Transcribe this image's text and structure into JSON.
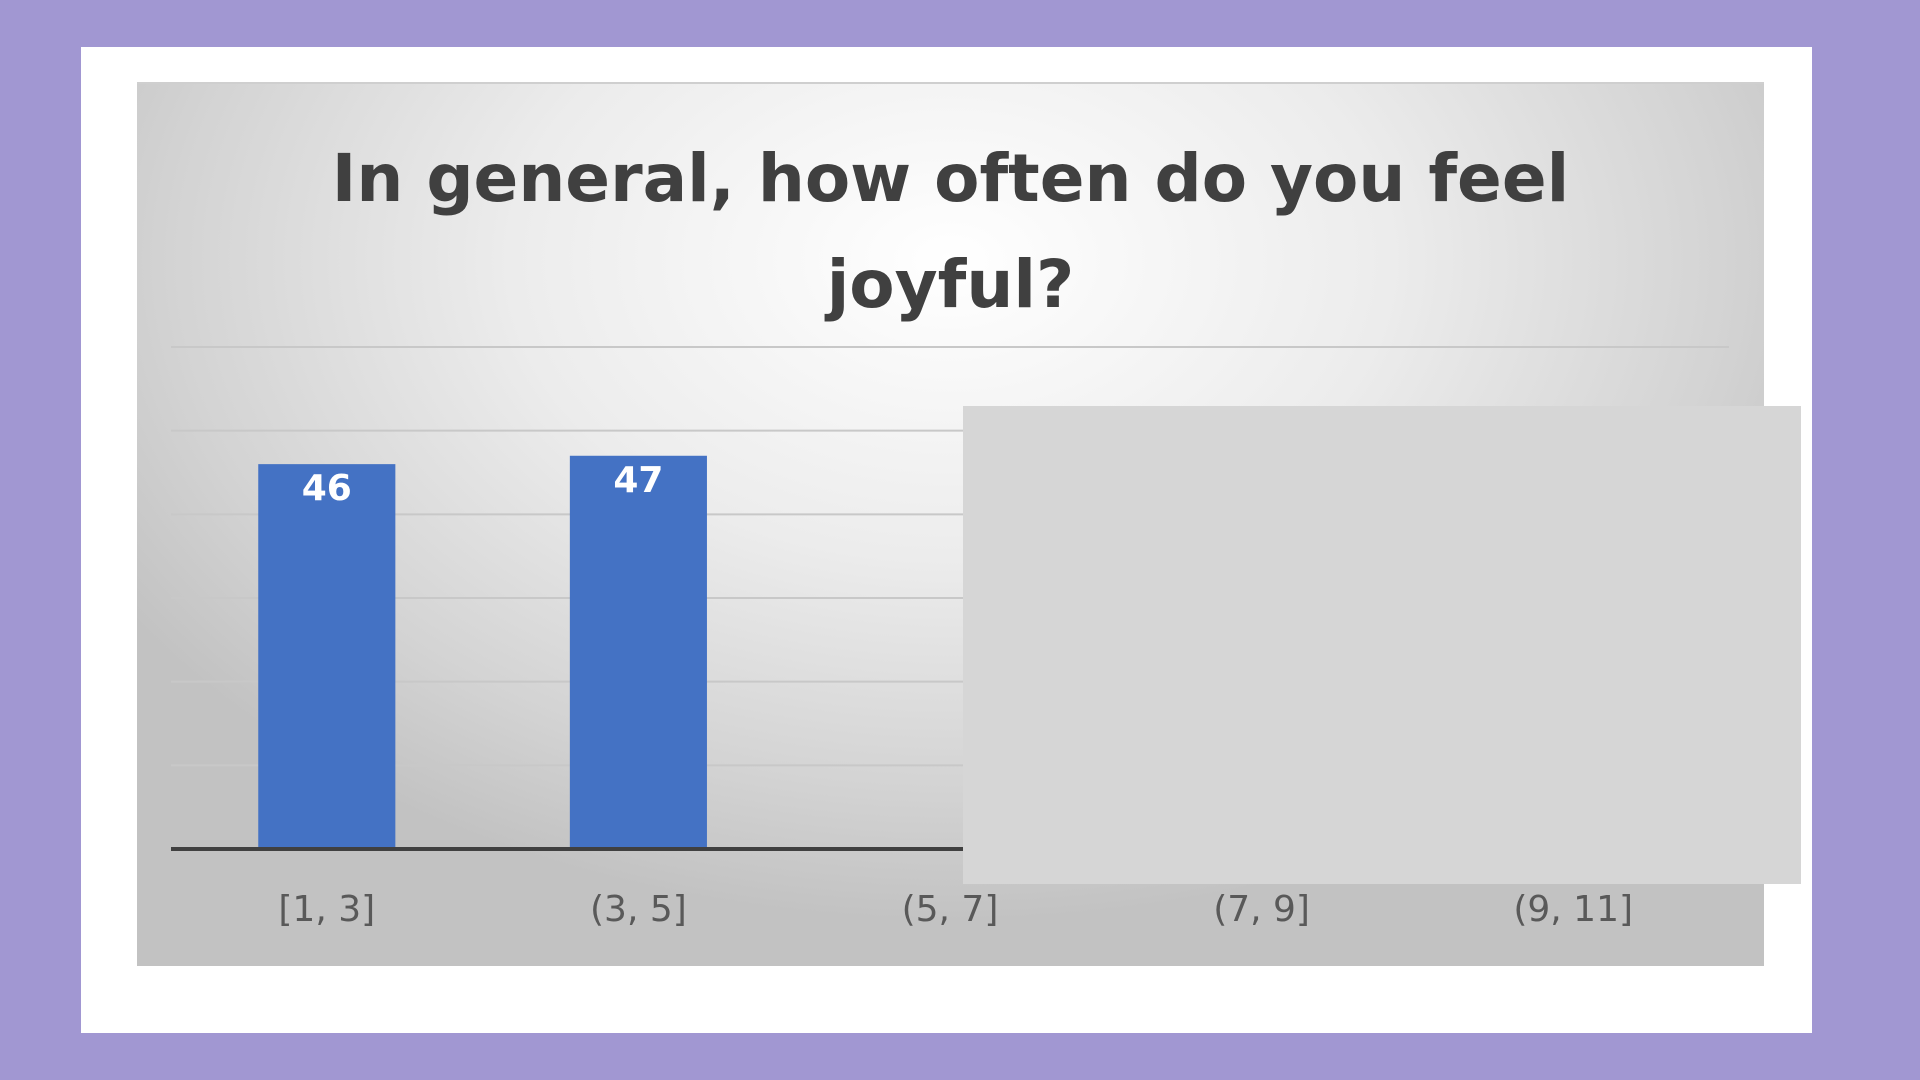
{
  "chart_data": {
    "type": "bar",
    "title_lines": [
      "In general, how often do you feel",
      "joyful?"
    ],
    "categories": [
      "[1, 3]",
      "(3, 5]",
      "(5, 7]",
      "(7, 9]",
      "(9, 11]"
    ],
    "values": [
      46,
      47,
      null,
      null,
      null
    ],
    "data_labels": [
      "46",
      "47",
      "",
      "",
      ""
    ],
    "ylim": [
      0,
      60
    ],
    "grid": true,
    "legend": "none",
    "colors": {
      "bar": "#4472c4",
      "grid": "#c8c8c8",
      "axis": "#404040"
    },
    "notes_visible": "bars for (5, 7], (7, 9], (9, 11] hidden by a grey box"
  }
}
